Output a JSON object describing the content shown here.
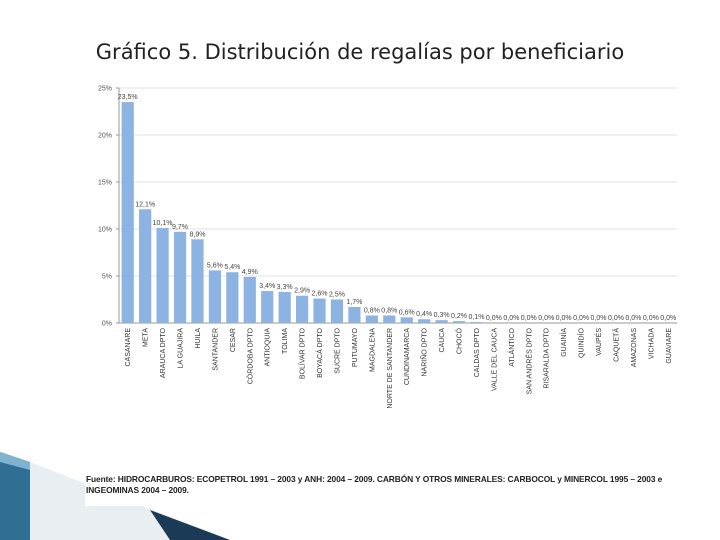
{
  "slide": {
    "title": "Gráfico 5. Distribución de regalías por beneficiario",
    "source": "Fuente: HIDROCARBUROS: ECOPETROL 1991 – 2003 y ANH: 2004 – 2009. CARBÓN Y OTROS MINERALES: CARBOCOL y MINERCOL 1995 – 2003 e INGEOMINAS 2004 – 2009."
  },
  "colors": {
    "bar": "#8db3e2",
    "axis": "#999999",
    "grid": "#e3e3e3"
  },
  "chart_data": {
    "type": "bar",
    "title": "",
    "xlabel": "",
    "ylabel": "",
    "ylim": [
      0,
      25
    ],
    "yticks": [
      {
        "value": 0,
        "label": "0%"
      },
      {
        "value": 5,
        "label": "5%"
      },
      {
        "value": 10,
        "label": "10%"
      },
      {
        "value": 15,
        "label": "15%"
      },
      {
        "value": 20,
        "label": "20%"
      },
      {
        "value": 25,
        "label": "25%"
      }
    ],
    "grid": true,
    "categories": [
      "CASANARE",
      "META",
      "ARAUCA DPTO",
      "LA GUAJIRA",
      "HUILA",
      "SANTANDER",
      "CESAR",
      "CÓRDOBA DPTO",
      "ANTIOQUIA",
      "TOLIMA",
      "BOLÍVAR DPTO",
      "BOYACÁ DPTO",
      "SUCRE DPTO",
      "PUTUMAYO",
      "MAGDALENA",
      "NORTE DE SANTANDER",
      "CUNDINAMARCA",
      "NARIÑO DPTO",
      "CAUCA",
      "CHOCÓ",
      "CALDAS DPTO",
      "VALLE DEL CAUCA",
      "ATLÁNTICO",
      "SAN ANDRÉS DPTO",
      "RISARALDA DPTO",
      "GUAINÍA",
      "QUINDÍO",
      "VAUPÉS",
      "CAQUETÁ",
      "AMAZONAS",
      "VICHADA",
      "GUAVIARE"
    ],
    "values": [
      23.5,
      12.1,
      10.1,
      9.7,
      8.9,
      5.6,
      5.4,
      4.9,
      3.4,
      3.3,
      2.9,
      2.6,
      2.5,
      1.7,
      0.8,
      0.8,
      0.6,
      0.4,
      0.3,
      0.2,
      0.1,
      0.0,
      0.0,
      0.0,
      0.0,
      0.0,
      0.0,
      0.0,
      0.0,
      0.0,
      0.0,
      0.0
    ],
    "value_labels": [
      "23,5%",
      "12,1%",
      "10,1%",
      "9,7%",
      "8,9%",
      "5,6%",
      "5,4%",
      "4,9%",
      "3,4%",
      "3,3%",
      "2,9%",
      "2,6%",
      "2,5%",
      "1,7%",
      "0,8%",
      "0,8%",
      "0,6%",
      "0,4%",
      "0,3%",
      "0,2%",
      "0,1%",
      "0,0%",
      "0,0%",
      "0,0%",
      "0,0%",
      "0,0%",
      "0,0%",
      "0,0%",
      "0,0%",
      "0,0%",
      "0,0%",
      "0,0%"
    ]
  }
}
